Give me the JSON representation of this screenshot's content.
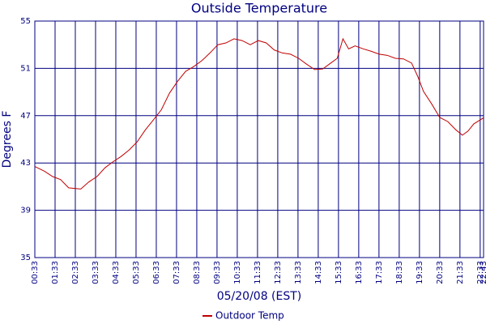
{
  "chart_data": {
    "type": "line",
    "title": "Outside Temperature",
    "xlabel": "05/20/08 (EST)",
    "ylabel": "Degrees F",
    "xlim": [
      0.55,
      22.7167
    ],
    "ylim": [
      35,
      55
    ],
    "yticks": [
      35,
      39,
      43,
      47,
      51,
      55
    ],
    "xticks": [
      {
        "value": 0.55,
        "label": "00:33"
      },
      {
        "value": 1.55,
        "label": "01:33"
      },
      {
        "value": 2.55,
        "label": "02:33"
      },
      {
        "value": 3.55,
        "label": "03:33"
      },
      {
        "value": 4.55,
        "label": "04:33"
      },
      {
        "value": 5.55,
        "label": "05:33"
      },
      {
        "value": 6.55,
        "label": "06:33"
      },
      {
        "value": 7.55,
        "label": "07:33"
      },
      {
        "value": 8.55,
        "label": "08:33"
      },
      {
        "value": 9.55,
        "label": "09:33"
      },
      {
        "value": 10.55,
        "label": "10:33"
      },
      {
        "value": 11.55,
        "label": "11:33"
      },
      {
        "value": 12.55,
        "label": "12:33"
      },
      {
        "value": 13.55,
        "label": "13:33"
      },
      {
        "value": 14.55,
        "label": "14:33"
      },
      {
        "value": 15.55,
        "label": "15:33"
      },
      {
        "value": 16.55,
        "label": "16:33"
      },
      {
        "value": 17.55,
        "label": "17:33"
      },
      {
        "value": 18.55,
        "label": "18:33"
      },
      {
        "value": 19.55,
        "label": "19:33"
      },
      {
        "value": 20.55,
        "label": "20:33"
      },
      {
        "value": 21.55,
        "label": "21:33"
      },
      {
        "value": 22.55,
        "label": "22:33"
      },
      {
        "value": 22.7167,
        "label": "22:43"
      }
    ],
    "grid": true,
    "legend": "bottom",
    "x": [
      0.55,
      1.03,
      1.43,
      1.82,
      2.22,
      2.82,
      3.22,
      3.62,
      4.02,
      4.41,
      4.81,
      5.21,
      5.61,
      6.01,
      6.41,
      6.8,
      7.2,
      7.6,
      8.0,
      8.4,
      8.8,
      9.2,
      9.59,
      9.99,
      10.39,
      10.79,
      11.19,
      11.59,
      11.98,
      12.38,
      12.78,
      13.18,
      13.58,
      13.98,
      14.37,
      14.77,
      15.17,
      15.49,
      15.77,
      16.05,
      16.37,
      16.77,
      17.16,
      17.56,
      17.96,
      18.36,
      18.76,
      19.16,
      19.47,
      19.75,
      20.15,
      20.55,
      20.95,
      21.35,
      21.67,
      21.95,
      22.23,
      22.7
    ],
    "series": [
      {
        "name": "Outdoor Temp",
        "color": "#c00000",
        "values": [
          42.7,
          42.3,
          41.85,
          41.6,
          40.9,
          40.8,
          41.4,
          41.85,
          42.6,
          43.1,
          43.55,
          44.1,
          44.8,
          45.8,
          46.65,
          47.5,
          48.9,
          49.9,
          50.75,
          51.15,
          51.65,
          52.3,
          53.0,
          53.15,
          53.5,
          53.35,
          53.0,
          53.35,
          53.15,
          52.55,
          52.3,
          52.2,
          51.85,
          51.35,
          50.9,
          50.95,
          51.45,
          51.85,
          53.5,
          52.65,
          52.9,
          52.65,
          52.45,
          52.2,
          52.1,
          51.85,
          51.8,
          51.45,
          50.3,
          49.05,
          48.0,
          46.85,
          46.5,
          45.8,
          45.35,
          45.7,
          46.3,
          46.8
        ]
      }
    ]
  }
}
